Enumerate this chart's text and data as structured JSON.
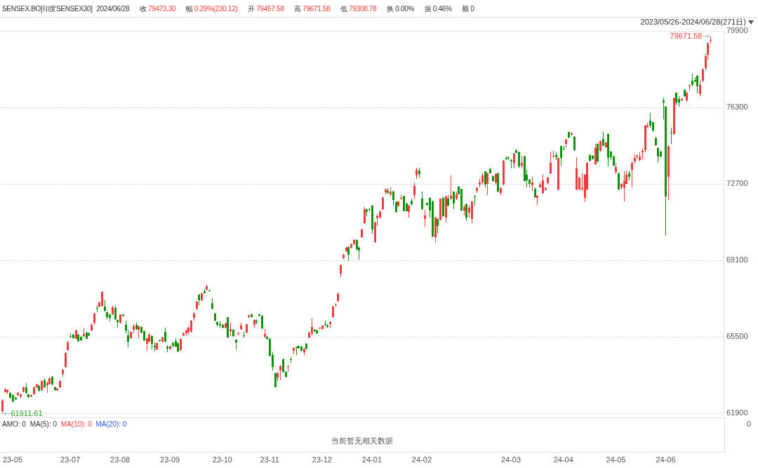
{
  "chart_data": [
    {
      "type": "candlestick",
      "title": "SENSEX.BO[印度SENSEX30]",
      "subtitle": "2024/06/28  收 79473.30  幅 0.29%(230.12)  开 79457.58  高 79671.58  低 79308.78  换 0.00%  振 0.46%  额 0",
      "categories": [
        null,
        null,
        null,
        null,
        "23-05",
        null,
        null,
        null,
        null,
        null,
        null,
        null,
        null,
        null,
        null,
        null,
        null,
        null,
        null,
        null,
        null,
        null,
        null,
        null,
        null,
        null,
        "23-07",
        null,
        null,
        null,
        null,
        null,
        null,
        null,
        null,
        null,
        null,
        null,
        null,
        null,
        null,
        null,
        null,
        null,
        null,
        "23-08",
        null,
        null,
        null,
        null,
        null,
        null,
        null,
        null,
        null,
        null,
        null,
        null,
        null,
        null,
        null,
        null,
        null,
        null,
        "23-09",
        null,
        null,
        null,
        null,
        null,
        null,
        null,
        null,
        null,
        null,
        null,
        null,
        null,
        null,
        null,
        null,
        null,
        null,
        null,
        "23-10",
        null,
        null,
        null,
        null,
        null,
        null,
        null,
        null,
        null,
        null,
        null,
        null,
        null,
        null,
        null,
        null,
        null,
        "23-11",
        null,
        null,
        null,
        null,
        null,
        null,
        null,
        null,
        null,
        null,
        null,
        null,
        null,
        null,
        null,
        null,
        null,
        null,
        null,
        "23-12",
        null,
        null,
        null,
        null,
        null,
        null,
        null,
        null,
        null,
        null,
        null,
        null,
        null,
        null,
        null,
        null,
        null,
        null,
        "24-01",
        null,
        null,
        null,
        null,
        null,
        null,
        null,
        null,
        null,
        null,
        null,
        null,
        null,
        null,
        null,
        null,
        null,
        null,
        "24-02",
        null,
        null,
        null,
        null,
        null,
        null,
        null,
        null,
        null,
        null,
        null,
        null,
        null,
        null,
        null,
        null,
        null,
        null,
        null,
        null,
        null,
        null,
        null,
        null,
        null,
        null,
        null,
        null,
        null,
        null,
        null,
        null,
        null,
        "24-03",
        null,
        null,
        null,
        null,
        null,
        null,
        null,
        null,
        null,
        null,
        null,
        null,
        null,
        null,
        null,
        null,
        null,
        null,
        null,
        "24-04",
        null,
        null,
        null,
        null,
        null,
        null,
        null,
        null,
        null,
        null,
        null,
        null,
        null,
        null,
        null,
        null,
        null,
        null,
        null,
        "24-05",
        null,
        null,
        null,
        null,
        null,
        null,
        null,
        null,
        null,
        null,
        null,
        null,
        null,
        null,
        null,
        null,
        null,
        null,
        "24-06",
        null,
        null,
        null,
        null,
        null,
        null,
        null,
        null,
        null,
        null,
        null,
        null,
        null,
        null,
        null,
        null,
        null
      ],
      "ohlc": [
        [
          62000,
          62550,
          61911.61,
          62490
        ],
        [
          62910,
          63080,
          62860,
          63020
        ],
        [
          62880,
          63030,
          62840,
          62990
        ],
        [
          62860,
          62900,
          62590,
          62640
        ],
        [
          62770,
          62800,
          62390,
          62470
        ],
        [
          62640,
          62680,
          62520,
          62550
        ],
        [
          62770,
          62890,
          62740,
          62860
        ],
        [
          62690,
          62830,
          62610,
          62800
        ],
        [
          62910,
          63160,
          62890,
          63130
        ],
        [
          63130,
          63330,
          62830,
          62860
        ],
        [
          62800,
          62830,
          62620,
          62660
        ],
        [
          62680,
          62770,
          62650,
          62750
        ],
        [
          62800,
          63160,
          62780,
          63130
        ],
        [
          63130,
          63280,
          63100,
          63240
        ],
        [
          63190,
          63220,
          62930,
          62970
        ],
        [
          62990,
          63440,
          62960,
          63410
        ],
        [
          63460,
          63540,
          63100,
          63130
        ],
        [
          63220,
          63370,
          62860,
          63330
        ],
        [
          63300,
          63570,
          63270,
          63540
        ],
        [
          63610,
          63640,
          63220,
          63240
        ],
        [
          63130,
          63160,
          62960,
          62990
        ],
        [
          62990,
          63090,
          62960,
          63050
        ],
        [
          63130,
          63460,
          63100,
          63430
        ],
        [
          63740,
          63970,
          63630,
          63940
        ],
        [
          64090,
          64760,
          64060,
          64730
        ],
        [
          64870,
          65300,
          64840,
          65250
        ],
        [
          65530,
          65660,
          65440,
          65500
        ],
        [
          65590,
          65620,
          65420,
          65440
        ],
        [
          65410,
          65830,
          65390,
          65800
        ],
        [
          65590,
          65620,
          65220,
          65300
        ],
        [
          65500,
          65530,
          65300,
          65330
        ],
        [
          65520,
          65880,
          65500,
          65630
        ],
        [
          65700,
          65730,
          65390,
          65410
        ],
        [
          65660,
          65690,
          65530,
          65550
        ],
        [
          65800,
          66140,
          65770,
          66070
        ],
        [
          66160,
          66630,
          66050,
          66600
        ],
        [
          66840,
          66990,
          66660,
          66820
        ],
        [
          66930,
          67150,
          66880,
          67120
        ],
        [
          66950,
          67650,
          66930,
          67610
        ],
        [
          66910,
          67210,
          66690,
          66710
        ],
        [
          66660,
          66680,
          66330,
          66440
        ],
        [
          66550,
          66570,
          66220,
          66380
        ],
        [
          66550,
          66950,
          66520,
          66880
        ],
        [
          66840,
          66990,
          66300,
          66320
        ],
        [
          66290,
          66310,
          65940,
          66180
        ],
        [
          66160,
          66570,
          66130,
          66550
        ],
        [
          66550,
          66570,
          66460,
          66490
        ],
        [
          66050,
          66270,
          65660,
          65800
        ],
        [
          65550,
          65830,
          65000,
          65280
        ],
        [
          65420,
          65750,
          65390,
          65720
        ],
        [
          65830,
          66100,
          65660,
          65990
        ],
        [
          66050,
          66160,
          65840,
          65860
        ],
        [
          65830,
          66030,
          65440,
          65990
        ],
        [
          65960,
          65990,
          65670,
          65700
        ],
        [
          65770,
          65800,
          65300,
          65330
        ],
        [
          65170,
          65450,
          64840,
          65420
        ],
        [
          65280,
          65660,
          65250,
          65590
        ],
        [
          65520,
          65550,
          64890,
          65170
        ],
        [
          65060,
          65220,
          64810,
          65000
        ],
        [
          64890,
          65230,
          64860,
          65200
        ],
        [
          65330,
          65380,
          65260,
          65290
        ],
        [
          65280,
          65500,
          65250,
          65470
        ],
        [
          65720,
          65940,
          65250,
          65280
        ],
        [
          65030,
          65110,
          64780,
          64950
        ],
        [
          64950,
          65080,
          64860,
          65060
        ],
        [
          65200,
          65280,
          65000,
          65060
        ],
        [
          65310,
          65420,
          65000,
          65030
        ],
        [
          65190,
          65220,
          64780,
          64810
        ],
        [
          64870,
          65420,
          64840,
          65390
        ],
        [
          65550,
          65700,
          65520,
          65660
        ],
        [
          65660,
          65830,
          65550,
          65800
        ],
        [
          65720,
          65990,
          65610,
          65940
        ],
        [
          65770,
          66300,
          65700,
          66270
        ],
        [
          66380,
          66660,
          66270,
          66600
        ],
        [
          66820,
          67180,
          66770,
          67150
        ],
        [
          67480,
          67510,
          66990,
          67210
        ],
        [
          67210,
          67570,
          67180,
          67540
        ],
        [
          67650,
          67760,
          67540,
          67560
        ],
        [
          67700,
          67940,
          67680,
          67870
        ],
        [
          67680,
          67700,
          67620,
          67650
        ],
        [
          67100,
          67320,
          66800,
          66820
        ],
        [
          66600,
          66630,
          66240,
          66270
        ],
        [
          66210,
          66240,
          65990,
          66050
        ],
        [
          66080,
          66240,
          65940,
          66030
        ],
        [
          66070,
          66100,
          65910,
          65940
        ],
        [
          65940,
          66170,
          65910,
          66140
        ],
        [
          66410,
          66440,
          65440,
          65470
        ],
        [
          65750,
          66160,
          65530,
          65860
        ],
        [
          65820,
          65850,
          65510,
          65530
        ],
        [
          65360,
          65380,
          64920,
          65250
        ],
        [
          65630,
          65720,
          65550,
          65660
        ],
        [
          65860,
          66160,
          65830,
          66020
        ],
        [
          65580,
          65720,
          65470,
          65530
        ],
        [
          65690,
          66110,
          65660,
          66080
        ],
        [
          66410,
          66560,
          66380,
          66490
        ],
        [
          66570,
          66600,
          66410,
          66440
        ],
        [
          66070,
          66320,
          65920,
          66290
        ],
        [
          66270,
          66330,
          66100,
          66200
        ],
        [
          66570,
          66600,
          66460,
          66490
        ],
        [
          66490,
          66520,
          65860,
          65880
        ],
        [
          65500,
          65850,
          65470,
          65630
        ],
        [
          65500,
          65530,
          65380,
          65410
        ],
        [
          65410,
          65440,
          64570,
          64600
        ],
        [
          64640,
          64780,
          63900,
          64070
        ],
        [
          63780,
          63810,
          63110,
          63130
        ],
        [
          63570,
          63850,
          63410,
          63790
        ],
        [
          63900,
          64180,
          63460,
          64120
        ],
        [
          64450,
          64480,
          63820,
          63850
        ],
        [
          63850,
          63870,
          63580,
          63610
        ],
        [
          64070,
          64180,
          63850,
          64120
        ],
        [
          64450,
          64530,
          64290,
          64400
        ],
        [
          64840,
          65000,
          64670,
          64970
        ],
        [
          65030,
          65050,
          64640,
          64980
        ],
        [
          65080,
          65110,
          64940,
          64970
        ],
        [
          65040,
          65060,
          64810,
          64840
        ],
        [
          64780,
          64960,
          64640,
          64930
        ],
        [
          65170,
          65200,
          64900,
          64930
        ],
        [
          65470,
          65720,
          65440,
          65690
        ],
        [
          65660,
          66360,
          65550,
          65970
        ],
        [
          65830,
          65860,
          65740,
          65770
        ],
        [
          65800,
          65820,
          65640,
          65660
        ],
        [
          65900,
          65940,
          65870,
          65920
        ],
        [
          65860,
          66040,
          65840,
          66020
        ],
        [
          66100,
          66250,
          65990,
          66050
        ],
        [
          66020,
          66100,
          65920,
          65970
        ],
        [
          66080,
          66220,
          65940,
          66190
        ],
        [
          66410,
          66960,
          66380,
          66930
        ],
        [
          66990,
          67100,
          66930,
          67020
        ],
        [
          67180,
          67590,
          67150,
          67510
        ],
        [
          68470,
          68890,
          68310,
          68860
        ],
        [
          69200,
          69400,
          69170,
          69360
        ],
        [
          69530,
          69730,
          69500,
          69690
        ],
        [
          69730,
          69760,
          69070,
          69360
        ],
        [
          69690,
          69900,
          69660,
          69860
        ],
        [
          69860,
          70090,
          69830,
          70060
        ],
        [
          70060,
          70090,
          69560,
          69630
        ],
        [
          69690,
          69760,
          69130,
          69560
        ],
        [
          70180,
          70570,
          70150,
          70540
        ],
        [
          70840,
          71610,
          70810,
          71500
        ],
        [
          71470,
          71550,
          71170,
          71390
        ],
        [
          71510,
          71560,
          71400,
          71480
        ],
        [
          71690,
          71720,
          70340,
          70540
        ],
        [
          69960,
          70920,
          69930,
          70890
        ],
        [
          71080,
          71280,
          70730,
          71170
        ],
        [
          71110,
          71440,
          71090,
          71370
        ],
        [
          71500,
          72110,
          71470,
          72050
        ],
        [
          72290,
          72470,
          72220,
          72440
        ],
        [
          72380,
          72490,
          72240,
          72270
        ],
        [
          72220,
          72550,
          72110,
          72330
        ],
        [
          72350,
          72380,
          71660,
          71940
        ],
        [
          71830,
          71860,
          71360,
          71390
        ],
        [
          71690,
          71890,
          71610,
          71860
        ],
        [
          72030,
          72180,
          71940,
          72050
        ],
        [
          72130,
          72150,
          71400,
          71420
        ],
        [
          71770,
          71800,
          71400,
          71420
        ],
        [
          71390,
          71720,
          71110,
          71690
        ],
        [
          71910,
          72000,
          71660,
          71750
        ],
        [
          72160,
          72770,
          72000,
          72600
        ],
        [
          73100,
          73450,
          72930,
          73370
        ],
        [
          73340,
          73450,
          72990,
          73150
        ],
        [
          72020,
          72330,
          71470,
          71500
        ],
        [
          71040,
          71470,
          70670,
          71200
        ],
        [
          71800,
          71820,
          71690,
          71720
        ],
        [
          72030,
          72060,
          71110,
          71440
        ],
        [
          71880,
          71910,
          70200,
          70230
        ],
        [
          70180,
          71140,
          69960,
          71110
        ],
        [
          71060,
          71090,
          70340,
          70730
        ],
        [
          71000,
          72020,
          70980,
          71990
        ],
        [
          72050,
          72080,
          71140,
          71170
        ],
        [
          71110,
          72130,
          70890,
          72110
        ],
        [
          72020,
          72160,
          71640,
          71660
        ],
        [
          72000,
          73100,
          71940,
          72130
        ],
        [
          72330,
          72350,
          71500,
          71770
        ],
        [
          72000,
          72330,
          71940,
          72220
        ],
        [
          72570,
          72600,
          72190,
          72220
        ],
        [
          72460,
          72480,
          71420,
          71440
        ],
        [
          71440,
          71720,
          71220,
          71610
        ],
        [
          71740,
          71770,
          70950,
          71110
        ],
        [
          71330,
          71720,
          71110,
          71580
        ],
        [
          71060,
          71890,
          70840,
          71860
        ],
        [
          72110,
          72180,
          71690,
          72080
        ],
        [
          72380,
          72520,
          72270,
          72490
        ],
        [
          72660,
          72930,
          72550,
          72770
        ],
        [
          72770,
          73210,
          72660,
          73100
        ],
        [
          73280,
          73310,
          72550,
          72660
        ],
        [
          72710,
          73240,
          72160,
          73210
        ],
        [
          73390,
          73460,
          73180,
          73210
        ],
        [
          73060,
          73090,
          72800,
          72820
        ],
        [
          72770,
          73180,
          72660,
          73150
        ],
        [
          73210,
          73240,
          72300,
          72330
        ],
        [
          72270,
          72540,
          72160,
          72510
        ],
        [
          72660,
          73810,
          72630,
          73780
        ],
        [
          73910,
          74000,
          73820,
          73840
        ],
        [
          73940,
          74000,
          73810,
          73920
        ],
        [
          73810,
          73840,
          73430,
          73760
        ],
        [
          73650,
          74140,
          73430,
          74110
        ],
        [
          74270,
          74310,
          74140,
          74160
        ],
        [
          74200,
          74230,
          73430,
          73540
        ],
        [
          73570,
          74030,
          73430,
          73680
        ],
        [
          74000,
          74030,
          72800,
          72820
        ],
        [
          73130,
          73370,
          72550,
          72880
        ],
        [
          72900,
          72930,
          72550,
          72690
        ],
        [
          72620,
          73020,
          72380,
          72770
        ],
        [
          72470,
          72500,
          72050,
          72070
        ],
        [
          72050,
          72170,
          71720,
          72140
        ],
        [
          72550,
          72770,
          72520,
          72660
        ],
        [
          72270,
          73150,
          72220,
          72880
        ],
        [
          72440,
          72550,
          72380,
          72490
        ],
        [
          72730,
          73040,
          72660,
          73010
        ],
        [
          73210,
          74220,
          73150,
          73680
        ],
        [
          74000,
          74250,
          73920,
          74010
        ],
        [
          74050,
          74200,
          73810,
          73940
        ],
        [
          72440,
          73950,
          72410,
          73920
        ],
        [
          74470,
          74500,
          73540,
          73920
        ],
        [
          74340,
          74470,
          74270,
          74330
        ],
        [
          74580,
          74810,
          74420,
          74780
        ],
        [
          75160,
          75160,
          74860,
          74890
        ],
        [
          75020,
          75130,
          74970,
          75080
        ],
        [
          74910,
          74940,
          74250,
          74270
        ],
        [
          72440,
          73940,
          72410,
          73430
        ],
        [
          72440,
          73010,
          72410,
          72990
        ],
        [
          72440,
          73210,
          72380,
          72510
        ],
        [
          72050,
          73160,
          71850,
          73130
        ],
        [
          72440,
          73710,
          72410,
          73680
        ],
        [
          74050,
          74080,
          73760,
          73790
        ],
        [
          74030,
          74060,
          73840,
          73870
        ],
        [
          73610,
          74580,
          73590,
          74380
        ],
        [
          74580,
          74610,
          73680,
          73760
        ],
        [
          74250,
          74740,
          74220,
          74710
        ],
        [
          74820,
          75160,
          74470,
          74490
        ],
        [
          74420,
          74660,
          74420,
          74640
        ],
        [
          75060,
          75080,
          73540,
          73920
        ],
        [
          74230,
          74260,
          73810,
          73940
        ],
        [
          74000,
          74030,
          73530,
          73560
        ],
        [
          73260,
          73700,
          73150,
          73480
        ],
        [
          73210,
          73230,
          72410,
          72440
        ],
        [
          72550,
          72740,
          72440,
          72710
        ],
        [
          72490,
          73280,
          71890,
          72820
        ],
        [
          72710,
          73320,
          72690,
          73120
        ],
        [
          73210,
          73320,
          72880,
          73040
        ],
        [
          73370,
          73710,
          72550,
          73680
        ],
        [
          73760,
          74090,
          73650,
          73920
        ],
        [
          73980,
          74090,
          73900,
          74030
        ],
        [
          73830,
          74200,
          73760,
          74000
        ],
        [
          74200,
          74360,
          73870,
          74250
        ],
        [
          74270,
          75470,
          74200,
          75440
        ],
        [
          75380,
          75570,
          75350,
          75440
        ],
        [
          75680,
          76040,
          75350,
          75440
        ],
        [
          75600,
          75620,
          75130,
          75220
        ],
        [
          74840,
          74910,
          74470,
          74530
        ],
        [
          74380,
          74410,
          73700,
          73980
        ],
        [
          74220,
          74240,
          73970,
          74000
        ],
        [
          76620,
          76750,
          75740,
          76530
        ],
        [
          76320,
          76350,
          70290,
          72110
        ],
        [
          73040,
          74530,
          71940,
          74450
        ],
        [
          75110,
          75350,
          74580,
          75080
        ],
        [
          75040,
          76760,
          75000,
          76730
        ],
        [
          76980,
          77010,
          76400,
          76540
        ],
        [
          76700,
          76840,
          76340,
          76530
        ],
        [
          76620,
          76740,
          76590,
          76700
        ],
        [
          77110,
          77170,
          76810,
          76840
        ],
        [
          76620,
          77030,
          76560,
          77000
        ],
        [
          77280,
          77390,
          77090,
          77310
        ],
        [
          77550,
          77890,
          77280,
          77360
        ],
        [
          77580,
          77720,
          77500,
          77520
        ],
        [
          77800,
          77830,
          76950,
          77280
        ],
        [
          76920,
          77550,
          76840,
          77360
        ],
        [
          77550,
          78160,
          77500,
          78080
        ],
        [
          78160,
          78820,
          78050,
          78710
        ],
        [
          78790,
          79370,
          78550,
          79290
        ],
        [
          79457.58,
          79671.58,
          79308.78,
          79473.3
        ]
      ],
      "colors": [
        "#f03c3c",
        "#f03c3c",
        "#f03c3c",
        "#0f930f",
        "#0f930f",
        "#0f930f",
        "#f03c3c",
        "#f03c3c",
        "#f03c3c",
        "#0f930f",
        "#0f930f",
        "#f03c3c",
        "#f03c3c",
        "#f03c3c",
        "#0f930f",
        "#f03c3c",
        "#0f930f",
        "#f03c3c",
        "#f03c3c",
        "#0f930f",
        "#0f930f",
        "#f03c3c",
        "#f03c3c",
        "#f03c3c",
        "#f03c3c",
        "#f03c3c",
        "#0f930f",
        "#0f930f",
        "#f03c3c",
        "#0f930f",
        "#0f930f",
        "#f03c3c",
        "#0f930f",
        "#0f930f",
        "#f03c3c",
        "#f03c3c",
        "#0f930f",
        "#f03c3c",
        "#f03c3c",
        "#0f930f",
        "#0f930f",
        "#0f930f",
        "#f03c3c",
        "#0f930f",
        "#0f930f",
        "#f03c3c",
        "#0f930f",
        "#0f930f",
        "#0f930f",
        "#f03c3c",
        "#f03c3c",
        "#0f930f",
        "#f03c3c",
        "#0f930f",
        "#0f930f",
        "#f03c3c",
        "#f03c3c",
        "#0f930f",
        "#0f930f",
        "#f03c3c",
        "#0f930f",
        "#f03c3c",
        "#0f930f",
        "#0f930f",
        "#f03c3c",
        "#0f930f",
        "#0f930f",
        "#0f930f",
        "#f03c3c",
        "#f03c3c",
        "#f03c3c",
        "#f03c3c",
        "#f03c3c",
        "#f03c3c",
        "#f03c3c",
        "#0f930f",
        "#f03c3c",
        "#0f930f",
        "#f03c3c",
        "#0f930f",
        "#0f930f",
        "#0f930f",
        "#0f930f",
        "#0f930f",
        "#0f930f",
        "#f03c3c",
        "#0f930f",
        "#f03c3c",
        "#0f930f",
        "#0f930f",
        "#f03c3c",
        "#f03c3c",
        "#0f930f",
        "#f03c3c",
        "#f03c3c",
        "#0f930f",
        "#f03c3c",
        "#0f930f",
        "#0f930f",
        "#0f930f",
        "#f03c3c",
        "#0f930f",
        "#0f930f",
        "#0f930f",
        "#0f930f",
        "#f03c3c",
        "#f03c3c",
        "#0f930f",
        "#0f930f",
        "#f03c3c",
        "#0f930f",
        "#f03c3c",
        "#0f930f",
        "#0f930f",
        "#0f930f",
        "#f03c3c",
        "#0f930f",
        "#f03c3c",
        "#f03c3c",
        "#0f930f",
        "#0f930f",
        "#f03c3c",
        "#f03c3c",
        "#0f930f",
        "#0f930f",
        "#f03c3c",
        "#f03c3c",
        "#f03c3c",
        "#f03c3c",
        "#f03c3c",
        "#f03c3c",
        "#f03c3c",
        "#0f930f",
        "#f03c3c",
        "#f03c3c",
        "#0f930f",
        "#0f930f",
        "#f03c3c",
        "#f03c3c",
        "#0f930f",
        "#0f930f",
        "#0f930f",
        "#f03c3c",
        "#f03c3c",
        "#f03c3c",
        "#f03c3c",
        "#f03c3c",
        "#0f930f",
        "#f03c3c",
        "#0f930f",
        "#0f930f",
        "#f03c3c",
        "#f03c3c",
        "#0f930f",
        "#0f930f",
        "#f03c3c",
        "#0f930f",
        "#f03c3c",
        "#f03c3c",
        "#0f930f",
        "#0f930f",
        "#f03c3c",
        "#0f930f",
        "#0f930f",
        "#0f930f",
        "#f03c3c",
        "#0f930f",
        "#f03c3c",
        "#0f930f",
        "#f03c3c",
        "#0f930f",
        "#f03c3c",
        "#0f930f",
        "#f03c3c",
        "#0f930f",
        "#0f930f",
        "#f03c3c",
        "#0f930f",
        "#f03c3c",
        "#f03c3c",
        "#0f930f",
        "#f03c3c",
        "#f03c3c",
        "#f03c3c",
        "#0f930f",
        "#f03c3c",
        "#0f930f",
        "#0f930f",
        "#f03c3c",
        "#0f930f",
        "#f03c3c",
        "#f03c3c",
        "#0f930f",
        "#0f930f",
        "#0f930f",
        "#f03c3c",
        "#0f930f",
        "#0f930f",
        "#f03c3c",
        "#0f930f",
        "#0f930f",
        "#0f930f",
        "#f03c3c",
        "#0f930f",
        "#f03c3c",
        "#f03c3c",
        "#f03c3c",
        "#f03c3c",
        "#f03c3c",
        "#f03c3c",
        "#f03c3c",
        "#0f930f",
        "#f03c3c",
        "#0f930f",
        "#0f930f",
        "#f03c3c",
        "#0f930f",
        "#f03c3c",
        "#0f930f",
        "#f03c3c",
        "#f03c3c",
        "#f03c3c",
        "#f03c3c",
        "#f03c3c",
        "#0f930f",
        "#0f930f",
        "#f03c3c",
        "#0f930f",
        "#f03c3c",
        "#0f930f",
        "#f03c3c",
        "#0f930f",
        "#0f930f",
        "#0f930f",
        "#f03c3c",
        "#0f930f",
        "#f03c3c",
        "#f03c3c",
        "#f03c3c",
        "#0f930f",
        "#f03c3c",
        "#f03c3c",
        "#f03c3c",
        "#f03c3c",
        "#f03c3c",
        "#f03c3c",
        "#f03c3c",
        "#0f930f",
        "#0f930f",
        "#0f930f",
        "#0f930f",
        "#0f930f",
        "#0f930f",
        "#0f930f",
        "#f03c3c",
        "#0f930f",
        "#f03c3c",
        "#0f930f",
        "#0f930f",
        "#f03c3c",
        "#0f930f",
        "#f03c3c",
        "#f03c3c",
        "#0f930f",
        "#0f930f",
        "#0f930f",
        "#f03c3c",
        "#f03c3c",
        "#f03c3c",
        "#f03c3c",
        "#f03c3c"
      ],
      "ylim": [
        61900,
        79900
      ],
      "yticks": [
        61900,
        65500,
        69100,
        72700,
        76300,
        79900
      ],
      "grid": "y",
      "annotations": [
        "2023/05/26-2024/06/28(271日)",
        "79671.58",
        "61911.61"
      ]
    },
    {
      "type": "other",
      "annotations": [
        "AMO: 0",
        "MA(5): 0",
        "MA(10): 0",
        "MA(20): 0",
        "当前暂无相关数据",
        "0"
      ]
    }
  ]
}
